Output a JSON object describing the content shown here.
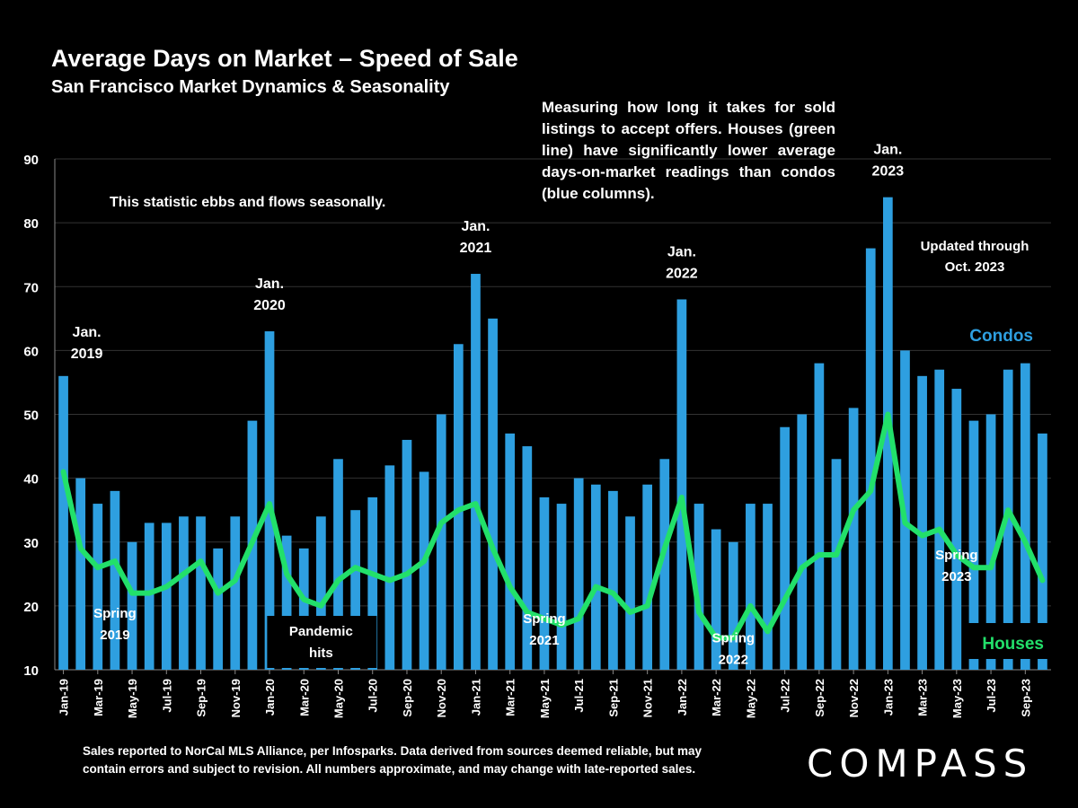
{
  "title": "Average Days on Market – Speed of Sale",
  "subtitle": "San Francisco Market Dynamics & Seasonality",
  "description": "Measuring how long it takes for sold listings to accept offers. Houses (green line) have significantly lower average days-on-market readings than condos (blue columns).",
  "seasonal_note": "This statistic ebbs and flows seasonally.",
  "updated_note": [
    "Updated through",
    "Oct. 2023"
  ],
  "footer": [
    "Sales reported to NorCal MLS Alliance, per Infosparks. Data derived from sources deemed reliable, but may",
    "contain errors and subject to revision. All numbers approximate, and may change with late-reported sales."
  ],
  "logo": "COMPASS",
  "colors": {
    "condos": "#2e9fe0",
    "houses": "#22e06a",
    "background": "#000000"
  },
  "chart_data": {
    "type": "bar",
    "title": "Average Days on Market – Speed of Sale",
    "xlabel": "",
    "ylabel": "",
    "ylim": [
      10,
      90
    ],
    "yticks": [
      10,
      20,
      30,
      40,
      50,
      60,
      70,
      80,
      90
    ],
    "grid": true,
    "categories": [
      "Jan-19",
      "Feb-19",
      "Mar-19",
      "Apr-19",
      "May-19",
      "Jun-19",
      "Jul-19",
      "Aug-19",
      "Sep-19",
      "Oct-19",
      "Nov-19",
      "Dec-19",
      "Jan-20",
      "Feb-20",
      "Mar-20",
      "Apr-20",
      "May-20",
      "Jun-20",
      "Jul-20",
      "Aug-20",
      "Sep-20",
      "Oct-20",
      "Nov-20",
      "Dec-20",
      "Jan-21",
      "Feb-21",
      "Mar-21",
      "Apr-21",
      "May-21",
      "Jun-21",
      "Jul-21",
      "Aug-21",
      "Sep-21",
      "Oct-21",
      "Nov-21",
      "Dec-21",
      "Jan-22",
      "Feb-22",
      "Mar-22",
      "Apr-22",
      "May-22",
      "Jun-22",
      "Jul-22",
      "Aug-22",
      "Sep-22",
      "Oct-22",
      "Nov-22",
      "Dec-22",
      "Jan-23",
      "Feb-23",
      "Mar-23",
      "Apr-23",
      "May-23",
      "Jun-23",
      "Jul-23",
      "Aug-23",
      "Sep-23",
      "Oct-23"
    ],
    "series": [
      {
        "name": "Condos",
        "type": "bar",
        "values": [
          56,
          40,
          36,
          38,
          30,
          33,
          33,
          34,
          34,
          29,
          34,
          49,
          63,
          31,
          29,
          34,
          43,
          35,
          37,
          42,
          46,
          41,
          50,
          61,
          72,
          65,
          47,
          45,
          37,
          36,
          40,
          39,
          38,
          34,
          39,
          43,
          68,
          36,
          32,
          30,
          36,
          36,
          48,
          50,
          58,
          43,
          51,
          76,
          84,
          60,
          56,
          57,
          54,
          49,
          50,
          57,
          58,
          47
        ]
      },
      {
        "name": "Houses",
        "type": "line",
        "values": [
          41,
          29,
          26,
          27,
          22,
          22,
          23,
          25,
          27,
          22,
          24,
          30,
          36,
          25,
          21,
          20,
          24,
          26,
          25,
          24,
          25,
          27,
          33,
          35,
          36,
          29,
          23,
          19,
          18,
          17,
          18,
          23,
          22,
          19,
          20,
          29,
          37,
          19,
          15,
          15,
          20,
          16,
          21,
          26,
          28,
          28,
          35,
          38,
          50,
          33,
          31,
          32,
          28,
          26,
          26,
          35,
          30,
          24
        ]
      }
    ],
    "annotations": [
      {
        "text": [
          "Jan.",
          "2019"
        ],
        "index": 0,
        "kind": "peak"
      },
      {
        "text": [
          "Jan.",
          "2020"
        ],
        "index": 12,
        "kind": "peak"
      },
      {
        "text": [
          "Jan.",
          "2021"
        ],
        "index": 24,
        "kind": "peak"
      },
      {
        "text": [
          "Jan.",
          "2022"
        ],
        "index": 36,
        "kind": "peak"
      },
      {
        "text": [
          "Jan.",
          "2023"
        ],
        "index": 48,
        "kind": "peak"
      },
      {
        "text": [
          "Spring",
          "2019"
        ],
        "index": 3,
        "kind": "spring"
      },
      {
        "text": [
          "Spring",
          "2021"
        ],
        "index": 28,
        "kind": "spring"
      },
      {
        "text": [
          "Spring",
          "2022"
        ],
        "index": 39,
        "kind": "spring"
      },
      {
        "text": [
          "Spring",
          "2023"
        ],
        "index": 52,
        "kind": "spring"
      },
      {
        "text": [
          "Pandemic",
          "hits"
        ],
        "index": 15,
        "kind": "event"
      }
    ],
    "legend": [
      {
        "label": "Condos",
        "position": "right"
      },
      {
        "label": "Houses",
        "position": "bottom-right"
      }
    ],
    "xtick_every": 2
  }
}
